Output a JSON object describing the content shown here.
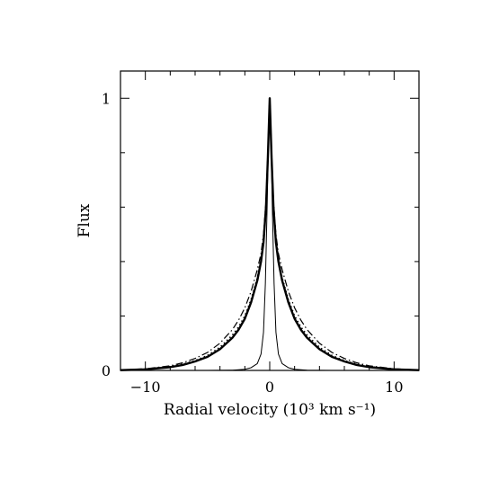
{
  "chart_data": {
    "type": "line",
    "title": "",
    "xlabel": "Radial velocity (10³ km s⁻¹)",
    "ylabel": "Flux",
    "xlim": [
      -12,
      12
    ],
    "ylim": [
      0,
      1.1
    ],
    "x_ticks": [
      {
        "value": -10,
        "label": "−10"
      },
      {
        "value": 0,
        "label": "0"
      },
      {
        "value": 10,
        "label": "10"
      }
    ],
    "y_ticks": [
      {
        "value": 0,
        "label": "0"
      },
      {
        "value": 1,
        "label": "1"
      }
    ],
    "grid": false,
    "legend": "none",
    "series": [
      {
        "style": "thin-solid",
        "x": [
          -12,
          -5,
          -3,
          -2,
          -1.5,
          -1,
          -0.7,
          -0.5,
          -0.35,
          -0.2,
          -0.1,
          0,
          0.1,
          0.2,
          0.35,
          0.5,
          0.7,
          1,
          1.5,
          2,
          3,
          5,
          12
        ],
        "y": [
          0,
          0,
          0.001,
          0.004,
          0.01,
          0.025,
          0.06,
          0.14,
          0.32,
          0.62,
          0.85,
          1.0,
          0.85,
          0.62,
          0.32,
          0.14,
          0.06,
          0.025,
          0.01,
          0.004,
          0.001,
          0,
          0
        ]
      },
      {
        "style": "thick-solid",
        "x": [
          -12,
          -10,
          -8,
          -7,
          -6,
          -5,
          -4,
          -3,
          -2.5,
          -2,
          -1.5,
          -1,
          -0.7,
          -0.5,
          -0.3,
          -0.15,
          0,
          0.15,
          0.3,
          0.5,
          0.7,
          1,
          1.5,
          2,
          2.5,
          3,
          4,
          5,
          6,
          7,
          8,
          10,
          12
        ],
        "y": [
          0.001,
          0.004,
          0.012,
          0.02,
          0.033,
          0.05,
          0.078,
          0.12,
          0.15,
          0.19,
          0.25,
          0.33,
          0.4,
          0.47,
          0.6,
          0.78,
          1.0,
          0.78,
          0.6,
          0.47,
          0.4,
          0.33,
          0.25,
          0.19,
          0.15,
          0.12,
          0.078,
          0.05,
          0.033,
          0.02,
          0.012,
          0.004,
          0.001
        ]
      },
      {
        "style": "dotted",
        "x": [
          -12,
          -10,
          -8,
          -7,
          -6,
          -5,
          -4,
          -3,
          -2.5,
          -2,
          -1.5,
          -1,
          -0.7,
          -0.5,
          -0.3,
          -0.15,
          0,
          0.15,
          0.3,
          0.5,
          0.7,
          1,
          1.5,
          2,
          2.5,
          3,
          4,
          5,
          6,
          7,
          8,
          10,
          12
        ],
        "y": [
          0.001,
          0.005,
          0.014,
          0.023,
          0.036,
          0.055,
          0.085,
          0.13,
          0.16,
          0.2,
          0.26,
          0.34,
          0.41,
          0.48,
          0.61,
          0.79,
          1.0,
          0.79,
          0.61,
          0.48,
          0.41,
          0.34,
          0.26,
          0.2,
          0.16,
          0.13,
          0.085,
          0.055,
          0.036,
          0.023,
          0.014,
          0.005,
          0.001
        ]
      },
      {
        "style": "dash-dot",
        "x": [
          -12,
          -10,
          -8,
          -7,
          -6,
          -5,
          -4,
          -3,
          -2.5,
          -2,
          -1.5,
          -1,
          -0.7,
          -0.5,
          -0.3,
          -0.15,
          0,
          0.15,
          0.3,
          0.5,
          0.7,
          1,
          1.5,
          2,
          2.5,
          3,
          4,
          5,
          6,
          7,
          8,
          10,
          12
        ],
        "y": [
          0.002,
          0.006,
          0.017,
          0.028,
          0.044,
          0.066,
          0.1,
          0.15,
          0.185,
          0.23,
          0.29,
          0.37,
          0.43,
          0.5,
          0.62,
          0.8,
          1.0,
          0.8,
          0.62,
          0.5,
          0.43,
          0.37,
          0.29,
          0.23,
          0.185,
          0.15,
          0.1,
          0.066,
          0.044,
          0.028,
          0.017,
          0.006,
          0.002
        ]
      }
    ]
  }
}
